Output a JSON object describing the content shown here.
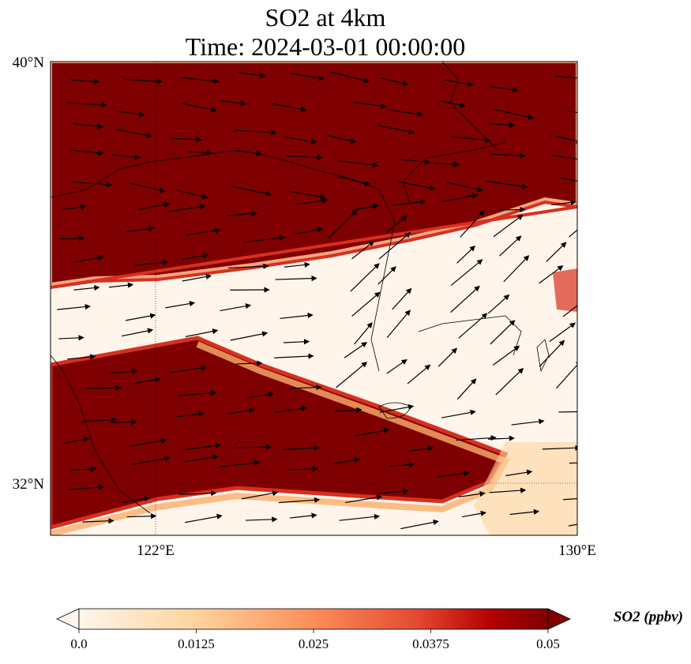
{
  "title": {
    "line1": "SO2 at 4km",
    "line2": "Time: 2024-03-01 00:00:00"
  },
  "map": {
    "lat_labels": [
      "40°N",
      "32°N"
    ],
    "lon_labels": [
      "122°E",
      "130°E"
    ],
    "lon_range": [
      120,
      130
    ],
    "lat_range": [
      31,
      40
    ]
  },
  "colorbar": {
    "label": "SO2 (ppbv)",
    "ticks": [
      "0.0",
      "0.0125",
      "0.025",
      "0.0375",
      "0.05"
    ],
    "range": [
      0,
      0.05
    ],
    "colors": [
      "#fff5eb",
      "#fdd49e",
      "#fc8d59",
      "#e34a33",
      "#b30000",
      "#7f0000"
    ]
  }
}
